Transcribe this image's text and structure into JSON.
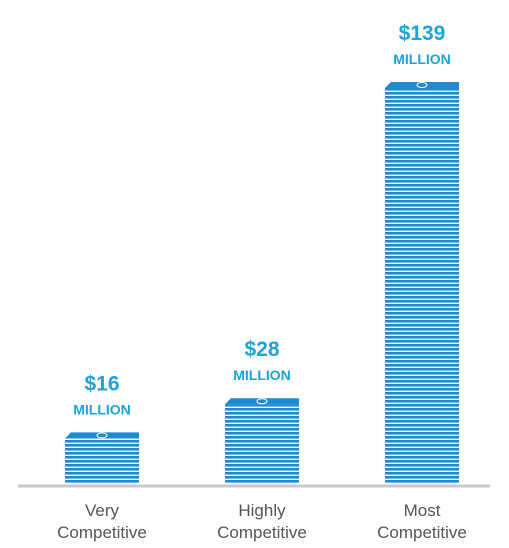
{
  "chart_data": {
    "type": "bar",
    "categories": [
      "Very Competitive",
      "Highly Competitive",
      "Most Competitive"
    ],
    "values": [
      16,
      28,
      139
    ],
    "value_labels": [
      "$16",
      "$28",
      "$139"
    ],
    "value_unit": "MILLION",
    "color": "#1e8ad2",
    "label_color": "#1ba3dd"
  }
}
